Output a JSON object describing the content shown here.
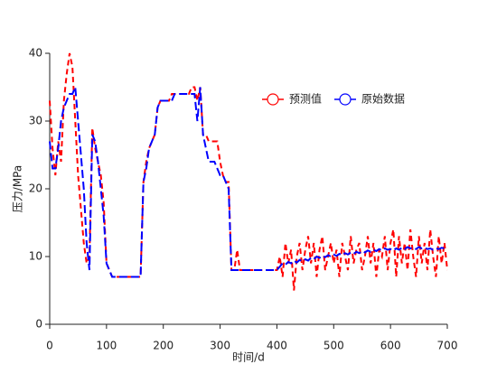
{
  "chart_data": {
    "type": "line",
    "xlabel": "时间/d",
    "ylabel": "压力/MPa",
    "xlim": [
      0,
      700
    ],
    "xticks": [
      0,
      100,
      200,
      300,
      400,
      500,
      600,
      700
    ],
    "ylim": [
      0,
      40
    ],
    "yticks": [
      0,
      10,
      20,
      30,
      40
    ],
    "grid": false,
    "legend": "upper right",
    "x": [
      0,
      5,
      10,
      15,
      20,
      25,
      30,
      35,
      40,
      45,
      50,
      55,
      60,
      65,
      70,
      75,
      80,
      85,
      90,
      95,
      100,
      105,
      110,
      115,
      120,
      125,
      130,
      135,
      140,
      145,
      150,
      155,
      160,
      165,
      170,
      175,
      180,
      185,
      190,
      195,
      200,
      205,
      210,
      215,
      220,
      225,
      230,
      235,
      240,
      245,
      250,
      255,
      260,
      265,
      270,
      275,
      280,
      285,
      290,
      295,
      300,
      305,
      310,
      315,
      320,
      325,
      330,
      335,
      340,
      345,
      350,
      355,
      360,
      365,
      370,
      375,
      380,
      385,
      390,
      395,
      400,
      405,
      410,
      415,
      420,
      425,
      430,
      435,
      440,
      445,
      450,
      455,
      460,
      465,
      470,
      475,
      480,
      485,
      490,
      495,
      500,
      505,
      510,
      515,
      520,
      525,
      530,
      535,
      540,
      545,
      550,
      555,
      560,
      565,
      570,
      575,
      580,
      585,
      590,
      595,
      600,
      605,
      610,
      615,
      620,
      625,
      630,
      635,
      640,
      645,
      650,
      655,
      660,
      665,
      670,
      675,
      680,
      685,
      690,
      695,
      700
    ],
    "series": [
      {
        "name": "预测值",
        "color": "#ff0000",
        "values": [
          33,
          26,
          22,
          27,
          24,
          33,
          37,
          40,
          38,
          30,
          22,
          17,
          12,
          9,
          10,
          29,
          26,
          24,
          22,
          18,
          9,
          8,
          7,
          7,
          7,
          7,
          7,
          7,
          7,
          7,
          7,
          7,
          7,
          21,
          24,
          26,
          27,
          28,
          32,
          33,
          33,
          33,
          33,
          34,
          34,
          34,
          34,
          34,
          34,
          34,
          35,
          35,
          33,
          35,
          28,
          28,
          27,
          27,
          27,
          27,
          24,
          22,
          21,
          21,
          8,
          8,
          11,
          8,
          8,
          8,
          8,
          8,
          8,
          8,
          8,
          8,
          8,
          8,
          8,
          8,
          8,
          10,
          7,
          12,
          9,
          11,
          5,
          10,
          12,
          8,
          11,
          13,
          9,
          12,
          7,
          11,
          13,
          8,
          10,
          12,
          9,
          11,
          7,
          12,
          10,
          8,
          13,
          9,
          11,
          12,
          8,
          10,
          13,
          9,
          12,
          7,
          11,
          10,
          13,
          8,
          12,
          14,
          7,
          13,
          9,
          12,
          8,
          14,
          10,
          7,
          13,
          9,
          12,
          8,
          14,
          10,
          7,
          13,
          9,
          12,
          8
        ]
      },
      {
        "name": "原始数据",
        "color": "#0000ff",
        "values": [
          27,
          23,
          23,
          26,
          30,
          32,
          33,
          34,
          34,
          35,
          30,
          25,
          20,
          12,
          8,
          28,
          27,
          24,
          20,
          16,
          9,
          8,
          7,
          7,
          7,
          7,
          7,
          7,
          7,
          7,
          7,
          7,
          7,
          21,
          23,
          26,
          27,
          28,
          32,
          33,
          33,
          33,
          33,
          33,
          34,
          34,
          34,
          34,
          34,
          34,
          34,
          34,
          30,
          35,
          28,
          26,
          24,
          24,
          24,
          23,
          22,
          22,
          21,
          20,
          8,
          8,
          8,
          8,
          8,
          8,
          8,
          8,
          8,
          8,
          8,
          8,
          8,
          8,
          8,
          8,
          8,
          8.5,
          9,
          8.8,
          9.2,
          9,
          9.4,
          9.1,
          9.5,
          9.3,
          9.6,
          9.4,
          9.8,
          9.6,
          10,
          9.8,
          10.1,
          9.9,
          10.2,
          10,
          10.3,
          10.1,
          10.4,
          10.2,
          10.5,
          10.3,
          10.6,
          10.4,
          10.7,
          10.5,
          10.8,
          10.6,
          10.9,
          10.7,
          11,
          10.8,
          11.1,
          10.9,
          11.2,
          11,
          11.1,
          10.9,
          11.2,
          11,
          11.3,
          11.1,
          11.4,
          11.2,
          11.3,
          11.1,
          11.4,
          11.2,
          11.3,
          11.1,
          11.2,
          11,
          11.2,
          11.1,
          11.3,
          11.2,
          11.1
        ]
      }
    ]
  }
}
